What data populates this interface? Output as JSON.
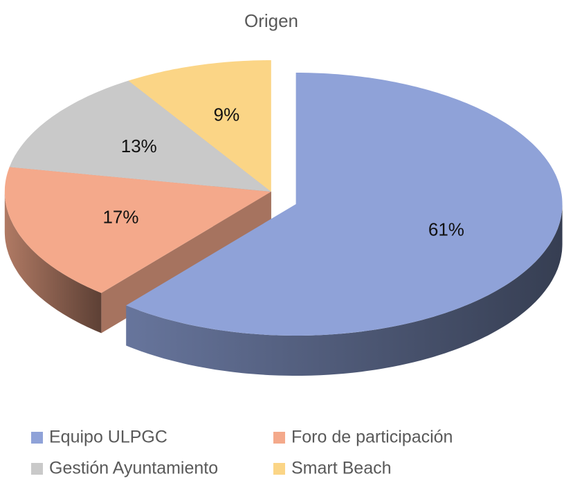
{
  "chart_data": {
    "type": "pie3d",
    "title": "Origen",
    "categories": [
      "Equipo ULPGC",
      "Foro de participación",
      "Gestión Ayuntamiento",
      "Smart Beach"
    ],
    "values": [
      61,
      17,
      13,
      9
    ],
    "value_labels": [
      "61%",
      "17%",
      "13%",
      "9%"
    ],
    "colors": [
      "#8fa2d8",
      "#f4a98b",
      "#c9c9c9",
      "#fbd586"
    ],
    "legend": "bottom"
  }
}
